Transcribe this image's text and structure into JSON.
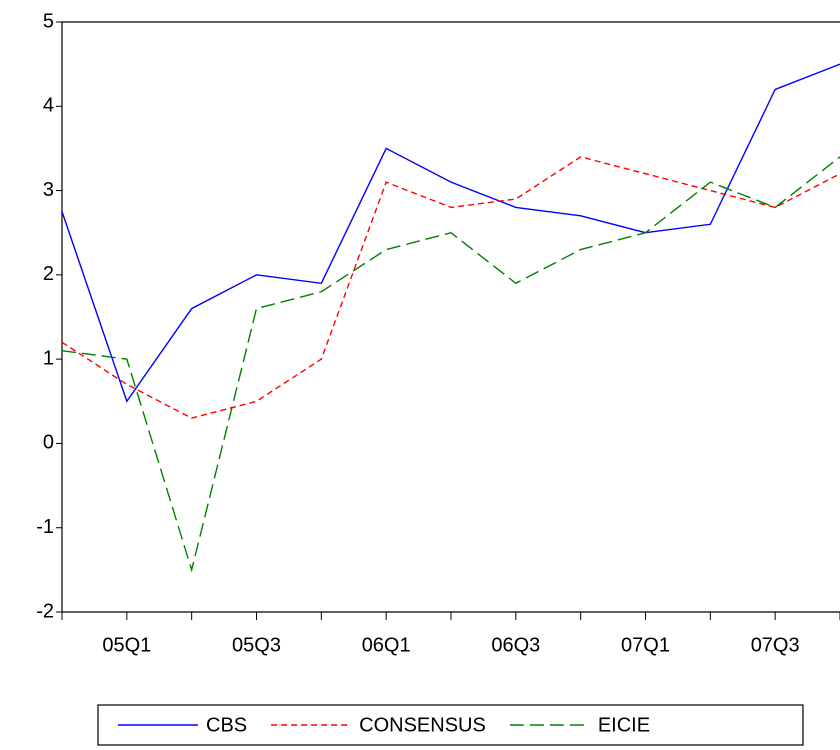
{
  "chart_data": {
    "type": "line",
    "categories": [
      null,
      "05Q1",
      null,
      "05Q3",
      null,
      "06Q1",
      null,
      "06Q3",
      null,
      "07Q1",
      null,
      "07Q3",
      null
    ],
    "series": [
      {
        "name": "CBS",
        "color": "#0000ff",
        "dash": "none",
        "values": [
          2.75,
          0.5,
          1.6,
          2.0,
          1.9,
          3.5,
          3.1,
          2.8,
          2.7,
          2.5,
          2.6,
          4.2,
          4.5
        ]
      },
      {
        "name": "CONSENSUS",
        "color": "#ff0000",
        "dash": "6,4",
        "values": [
          1.2,
          0.7,
          0.3,
          0.5,
          1.0,
          3.1,
          2.8,
          2.9,
          3.4,
          3.2,
          3.0,
          2.8,
          3.2
        ]
      },
      {
        "name": "EICIE",
        "color": "#008000",
        "dash": "14,6",
        "values": [
          1.1,
          1.0,
          -1.5,
          1.6,
          1.8,
          2.3,
          2.5,
          1.9,
          2.3,
          2.5,
          3.1,
          2.8,
          3.4
        ]
      }
    ],
    "ylim": [
      -2,
      5
    ],
    "yticks": [
      -2,
      -1,
      0,
      1,
      2,
      3,
      4,
      5
    ],
    "grid": false,
    "legend": "bottom"
  }
}
